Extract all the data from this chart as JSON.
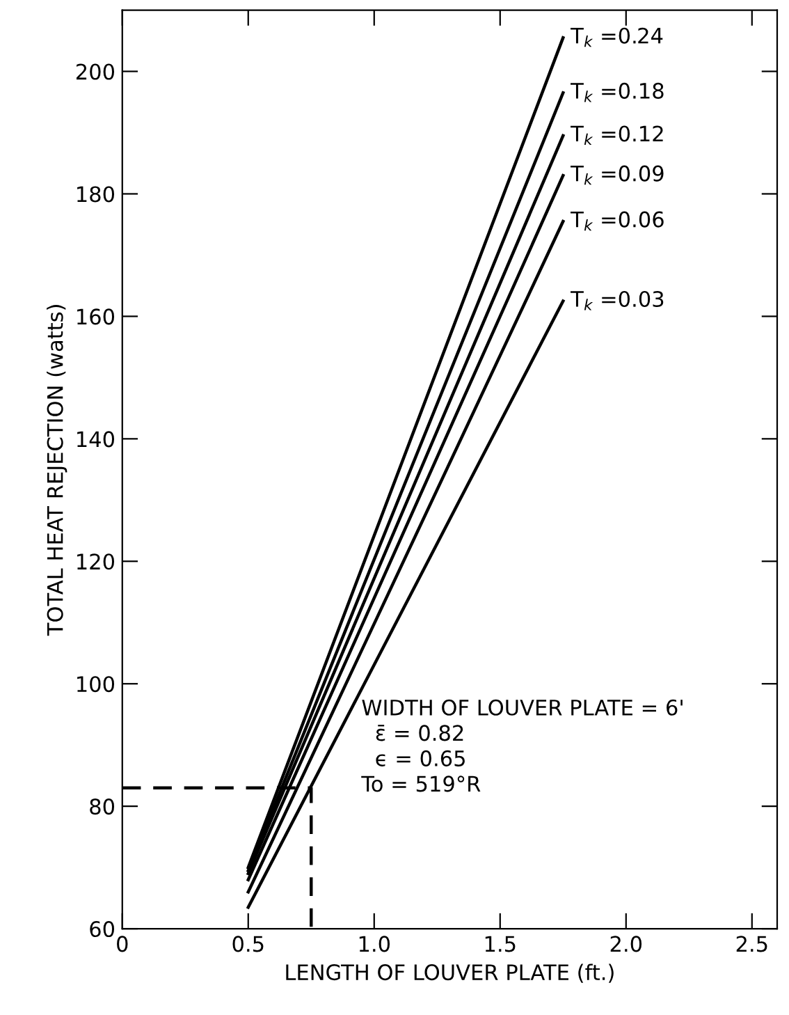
{
  "chart_data": {
    "type": "line",
    "xlabel": "LENGTH OF LOUVER PLATE (ft.)",
    "ylabel": "TOTAL HEAT REJECTION (watts)",
    "xlim": [
      0,
      2.6
    ],
    "ylim": [
      60,
      210
    ],
    "xticks": [
      {
        "value": 0,
        "label": "0"
      },
      {
        "value": 0.5,
        "label": "0.5"
      },
      {
        "value": 1.0,
        "label": "1.0"
      },
      {
        "value": 1.5,
        "label": "1.5"
      },
      {
        "value": 2.0,
        "label": "2.0"
      },
      {
        "value": 2.5,
        "label": "2.5"
      }
    ],
    "yticks": [
      60,
      80,
      100,
      120,
      140,
      160,
      180,
      200
    ],
    "grid": false,
    "series": [
      {
        "name": "T$_{k}$ =0.24",
        "color": "#000000",
        "x": [
          0.5,
          1.75
        ],
        "values": [
          70,
          205.5
        ]
      },
      {
        "name": "T$_{k}$ =0.18",
        "color": "#000000",
        "x": [
          0.5,
          1.75
        ],
        "values": [
          69.5,
          196.5
        ]
      },
      {
        "name": "T$_{k}$ =0.12",
        "color": "#000000",
        "x": [
          0.5,
          1.75
        ],
        "values": [
          69,
          189.5
        ]
      },
      {
        "name": "T$_{k}$ =0.09",
        "color": "#000000",
        "x": [
          0.5,
          1.75
        ],
        "values": [
          68,
          183
        ]
      },
      {
        "name": "T$_{k}$ =0.06",
        "color": "#000000",
        "x": [
          0.5,
          1.75
        ],
        "values": [
          66,
          175.5
        ]
      },
      {
        "name": "T$_{k}$ =0.03",
        "color": "#000000",
        "x": [
          0.5,
          1.75
        ],
        "values": [
          63.5,
          162.5
        ]
      },
      {
        "color": "#000000",
        "line_style": "dashed",
        "x": [
          0,
          0.75,
          0.75
        ],
        "values": [
          83,
          83,
          60
        ]
      }
    ],
    "annotations": [
      "WIDTH OF LOUVER PLATE = 6'\n  ε̄ = 0.82\n  ϵ = 0.65\nTo = 519°R"
    ]
  }
}
